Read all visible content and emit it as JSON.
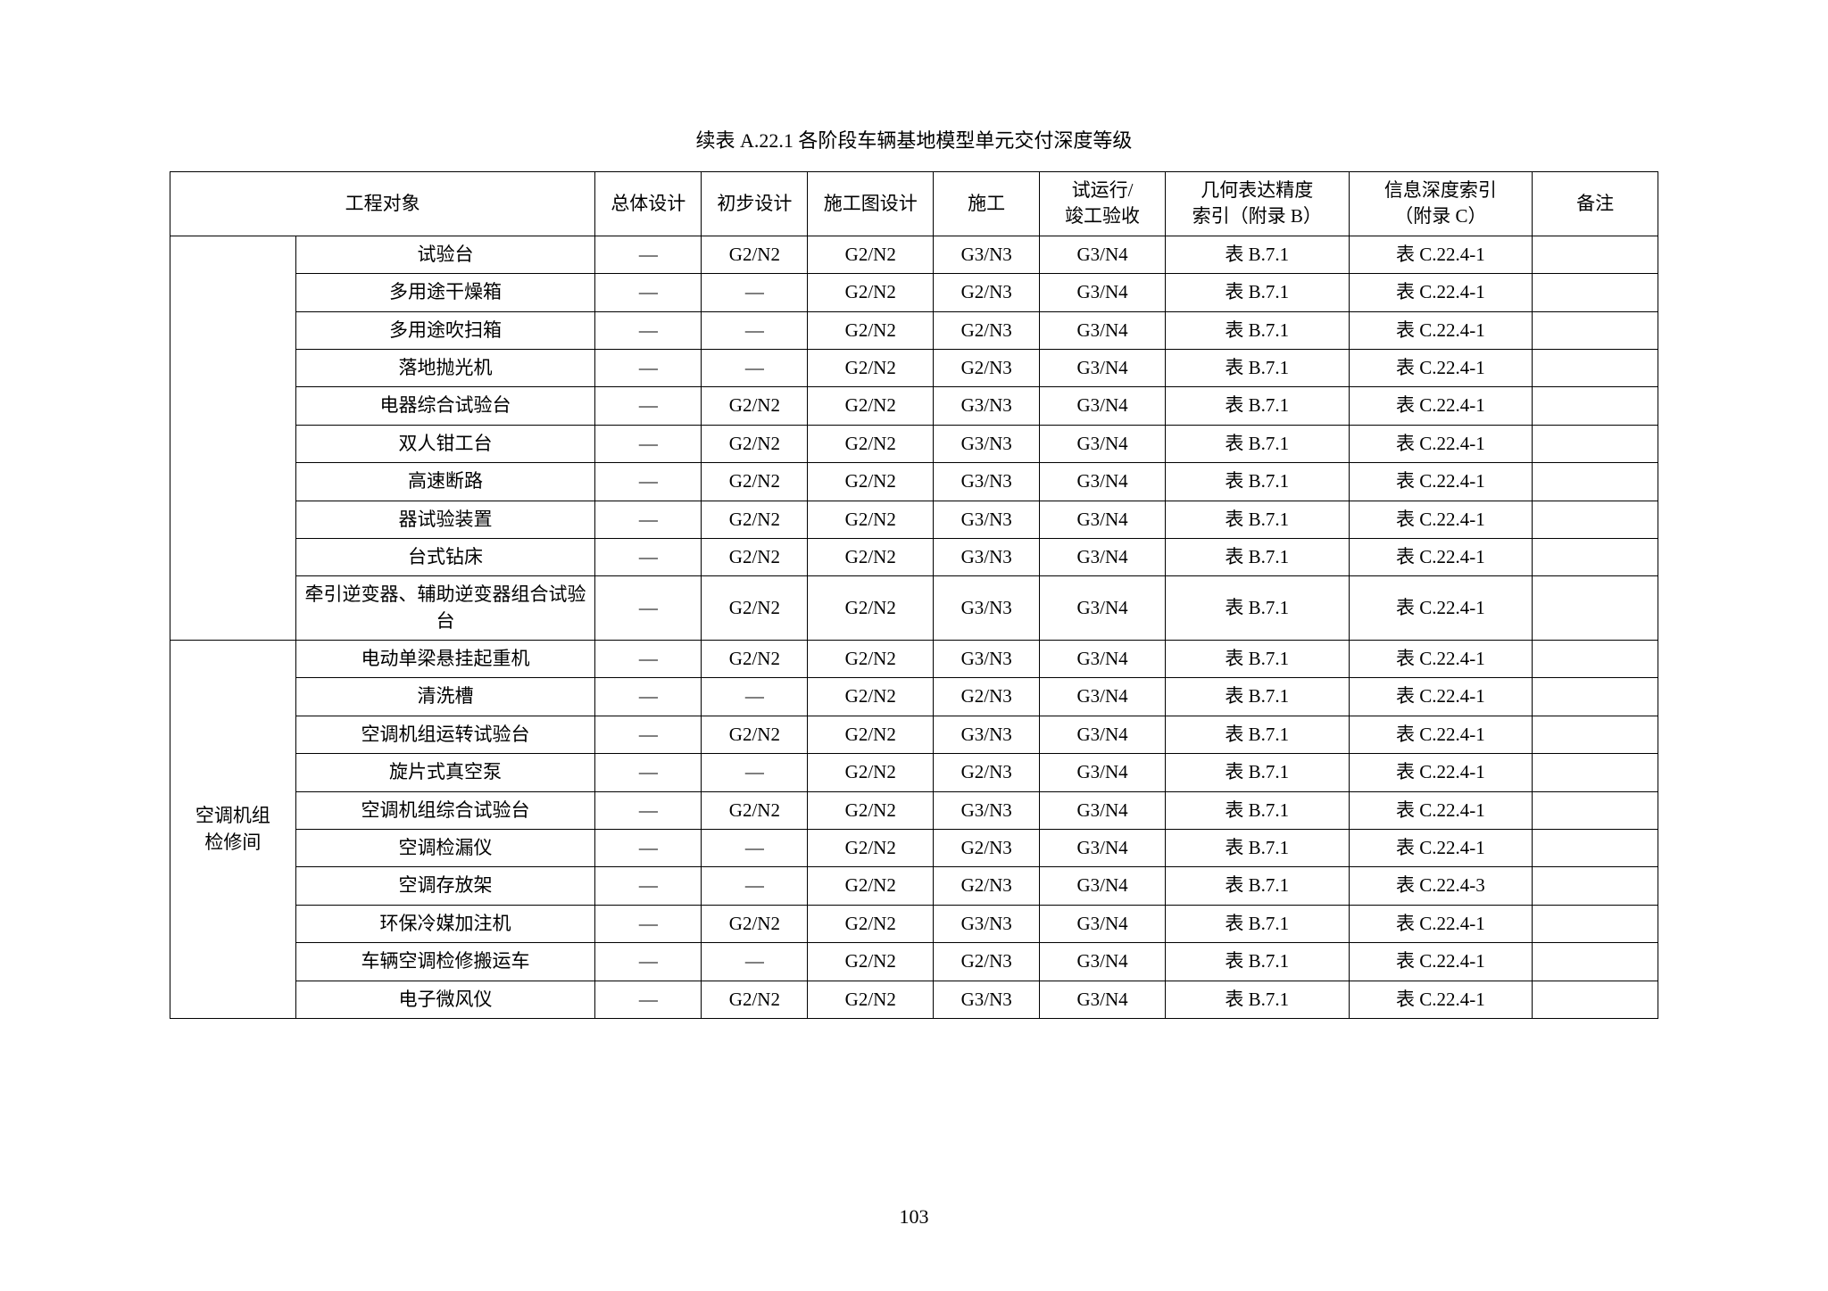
{
  "caption": "续表 A.22.1   各阶段车辆基地模型单元交付深度等级",
  "pageNumber": "103",
  "headers": {
    "obj": "工程对象",
    "overall": "总体设计",
    "prelim": "初步设计",
    "cd": "施工图设计",
    "construct": "施工",
    "trial": "试运行/竣工验收",
    "geo": "几何表达精度索引（附录 B）",
    "info": "信息深度索引（附录 C）",
    "note": "备注"
  },
  "dash": "—",
  "group2_label": "空调机组检修间",
  "group1": [
    {
      "item": "试验台",
      "c": [
        "—",
        "G2/N2",
        "G2/N2",
        "G3/N3",
        "G3/N4",
        "表 B.7.1",
        "表 C.22.4-1",
        ""
      ]
    },
    {
      "item": "多用途干燥箱",
      "c": [
        "—",
        "—",
        "G2/N2",
        "G2/N3",
        "G3/N4",
        "表 B.7.1",
        "表 C.22.4-1",
        ""
      ]
    },
    {
      "item": "多用途吹扫箱",
      "c": [
        "—",
        "—",
        "G2/N2",
        "G2/N3",
        "G3/N4",
        "表 B.7.1",
        "表 C.22.4-1",
        ""
      ]
    },
    {
      "item": "落地抛光机",
      "c": [
        "—",
        "—",
        "G2/N2",
        "G2/N3",
        "G3/N4",
        "表 B.7.1",
        "表 C.22.4-1",
        ""
      ]
    },
    {
      "item": "电器综合试验台",
      "c": [
        "—",
        "G2/N2",
        "G2/N2",
        "G3/N3",
        "G3/N4",
        "表 B.7.1",
        "表 C.22.4-1",
        ""
      ]
    },
    {
      "item": "双人钳工台",
      "c": [
        "—",
        "G2/N2",
        "G2/N2",
        "G3/N3",
        "G3/N4",
        "表 B.7.1",
        "表 C.22.4-1",
        ""
      ]
    },
    {
      "item": "高速断路",
      "c": [
        "—",
        "G2/N2",
        "G2/N2",
        "G3/N3",
        "G3/N4",
        "表 B.7.1",
        "表 C.22.4-1",
        ""
      ]
    },
    {
      "item": "器试验装置",
      "c": [
        "—",
        "G2/N2",
        "G2/N2",
        "G3/N3",
        "G3/N4",
        "表 B.7.1",
        "表 C.22.4-1",
        ""
      ]
    },
    {
      "item": "台式钻床",
      "c": [
        "—",
        "G2/N2",
        "G2/N2",
        "G3/N3",
        "G3/N4",
        "表 B.7.1",
        "表 C.22.4-1",
        ""
      ]
    },
    {
      "item": "牵引逆变器、辅助逆变器组合试验台",
      "c": [
        "—",
        "G2/N2",
        "G2/N2",
        "G3/N3",
        "G3/N4",
        "表 B.7.1",
        "表 C.22.4-1",
        ""
      ]
    }
  ],
  "group2": [
    {
      "item": "电动单梁悬挂起重机",
      "c": [
        "—",
        "G2/N2",
        "G2/N2",
        "G3/N3",
        "G3/N4",
        "表 B.7.1",
        "表 C.22.4-1",
        ""
      ]
    },
    {
      "item": "清洗槽",
      "c": [
        "—",
        "—",
        "G2/N2",
        "G2/N3",
        "G3/N4",
        "表 B.7.1",
        "表 C.22.4-1",
        ""
      ]
    },
    {
      "item": "空调机组运转试验台",
      "c": [
        "—",
        "G2/N2",
        "G2/N2",
        "G3/N3",
        "G3/N4",
        "表 B.7.1",
        "表 C.22.4-1",
        ""
      ]
    },
    {
      "item": "旋片式真空泵",
      "c": [
        "—",
        "—",
        "G2/N2",
        "G2/N3",
        "G3/N4",
        "表 B.7.1",
        "表 C.22.4-1",
        ""
      ]
    },
    {
      "item": "空调机组综合试验台",
      "c": [
        "—",
        "G2/N2",
        "G2/N2",
        "G3/N3",
        "G3/N4",
        "表 B.7.1",
        "表 C.22.4-1",
        ""
      ]
    },
    {
      "item": "空调检漏仪",
      "c": [
        "—",
        "—",
        "G2/N2",
        "G2/N3",
        "G3/N4",
        "表 B.7.1",
        "表 C.22.4-1",
        ""
      ]
    },
    {
      "item": "空调存放架",
      "c": [
        "—",
        "—",
        "G2/N2",
        "G2/N3",
        "G3/N4",
        "表 B.7.1",
        "表 C.22.4-3",
        ""
      ]
    },
    {
      "item": "环保冷媒加注机",
      "c": [
        "—",
        "G2/N2",
        "G2/N2",
        "G3/N3",
        "G3/N4",
        "表 B.7.1",
        "表 C.22.4-1",
        ""
      ]
    },
    {
      "item": "车辆空调检修搬运车",
      "c": [
        "—",
        "—",
        "G2/N2",
        "G2/N3",
        "G3/N4",
        "表 B.7.1",
        "表 C.22.4-1",
        ""
      ]
    },
    {
      "item": "电子微风仪",
      "c": [
        "—",
        "G2/N2",
        "G2/N2",
        "G3/N3",
        "G3/N4",
        "表 B.7.1",
        "表 C.22.4-1",
        ""
      ]
    }
  ]
}
